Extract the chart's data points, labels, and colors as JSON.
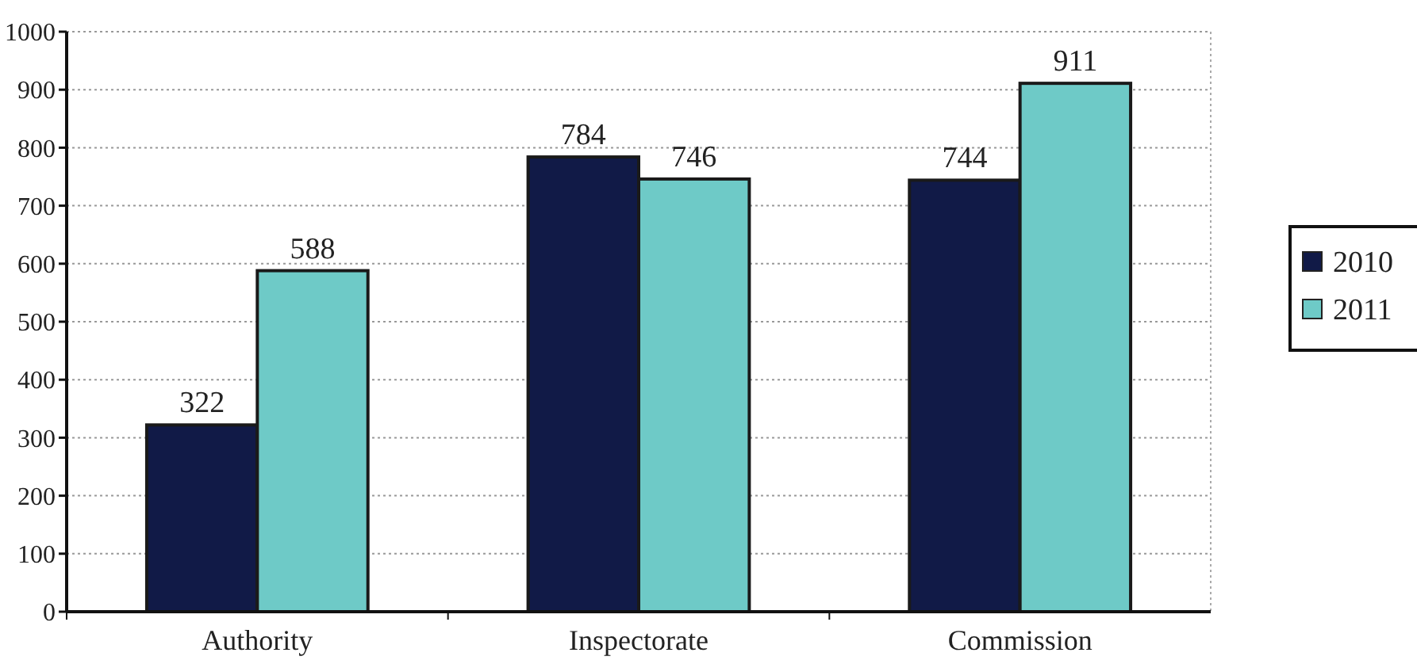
{
  "chart_data": {
    "type": "bar",
    "categories": [
      "Authority",
      "Inspectorate",
      "Commission"
    ],
    "series": [
      {
        "name": "2010",
        "color": "#111a47",
        "values": [
          322,
          784,
          744
        ]
      },
      {
        "name": "2011",
        "color": "#6ecac7",
        "values": [
          588,
          746,
          911
        ]
      }
    ],
    "ylim": [
      0,
      1000
    ],
    "yticks": [
      0,
      100,
      200,
      300,
      400,
      500,
      600,
      700,
      800,
      900,
      1000
    ],
    "grid": "y",
    "legend": "right",
    "data_labels": true
  }
}
